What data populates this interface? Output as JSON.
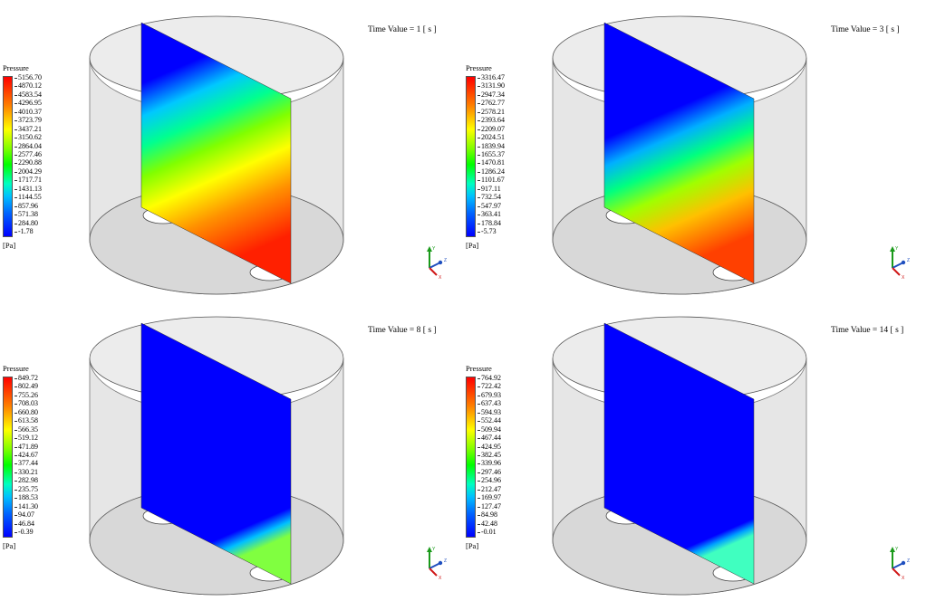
{
  "panels": [
    {
      "time_label": "Time Value = 1 [ s ]",
      "legend": {
        "title": "Pressure",
        "unit": "[Pa]",
        "ticks": [
          "5156.70",
          "4870.12",
          "4583.54",
          "4296.95",
          "4010.37",
          "3723.79",
          "3437.21",
          "3150.62",
          "2864.04",
          "2577.46",
          "2290.88",
          "2004.29",
          "1717.71",
          "1431.13",
          "1144.55",
          "857.96",
          "571.38",
          "284.80",
          "-1.78"
        ]
      },
      "field_stops": [
        {
          "offset": 0.0,
          "color": "#0000ff"
        },
        {
          "offset": 0.22,
          "color": "#0000ff"
        },
        {
          "offset": 0.34,
          "color": "#00c8ff"
        },
        {
          "offset": 0.45,
          "color": "#00ff90"
        },
        {
          "offset": 0.56,
          "color": "#80ff00"
        },
        {
          "offset": 0.68,
          "color": "#ffff00"
        },
        {
          "offset": 0.82,
          "color": "#ff9000"
        },
        {
          "offset": 1.0,
          "color": "#ff2000"
        }
      ]
    },
    {
      "time_label": "Time Value = 3 [ s ]",
      "legend": {
        "title": "Pressure",
        "unit": "[Pa]",
        "ticks": [
          "3316.47",
          "3131.90",
          "2947.34",
          "2762.77",
          "2578.21",
          "2393.64",
          "2209.07",
          "2024.51",
          "1839.94",
          "1655.37",
          "1470.81",
          "1286.24",
          "1101.67",
          "917.11",
          "732.54",
          "547.97",
          "363.41",
          "178.84",
          "-5.73"
        ]
      },
      "field_stops": [
        {
          "offset": 0.0,
          "color": "#0000ff"
        },
        {
          "offset": 0.42,
          "color": "#0000ff"
        },
        {
          "offset": 0.52,
          "color": "#00b0ff"
        },
        {
          "offset": 0.62,
          "color": "#00ff80"
        },
        {
          "offset": 0.72,
          "color": "#a0ff00"
        },
        {
          "offset": 0.84,
          "color": "#ffc000"
        },
        {
          "offset": 1.0,
          "color": "#ff4000"
        }
      ]
    },
    {
      "time_label": "Time Value = 8 [ s ]",
      "legend": {
        "title": "Pressure",
        "unit": "[Pa]",
        "ticks": [
          "849.72",
          "802.49",
          "755.26",
          "708.03",
          "660.80",
          "613.58",
          "566.35",
          "519.12",
          "471.89",
          "424.67",
          "377.44",
          "330.21",
          "282.98",
          "235.75",
          "188.53",
          "141.30",
          "94.07",
          "46.84",
          "-0.39"
        ]
      },
      "field_stops": [
        {
          "offset": 0.0,
          "color": "#0000ff"
        },
        {
          "offset": 0.9,
          "color": "#0000ff"
        },
        {
          "offset": 0.95,
          "color": "#00c0ff"
        },
        {
          "offset": 1.0,
          "color": "#80ff40"
        }
      ]
    },
    {
      "time_label": "Time Value = 14 [ s ]",
      "legend": {
        "title": "Pressure",
        "unit": "[Pa]",
        "ticks": [
          "764.92",
          "722.42",
          "679.93",
          "637.43",
          "594.93",
          "552.44",
          "509.94",
          "467.44",
          "424.95",
          "382.45",
          "339.96",
          "297.46",
          "254.96",
          "212.47",
          "169.97",
          "127.47",
          "84.98",
          "42.48",
          "-0.01"
        ]
      },
      "field_stops": [
        {
          "offset": 0.0,
          "color": "#0000ff"
        },
        {
          "offset": 0.94,
          "color": "#0000ff"
        },
        {
          "offset": 0.97,
          "color": "#00a0ff"
        },
        {
          "offset": 1.0,
          "color": "#40ffc0"
        }
      ]
    }
  ],
  "triad": {
    "y": "Y",
    "z": "Z",
    "x": "X"
  }
}
